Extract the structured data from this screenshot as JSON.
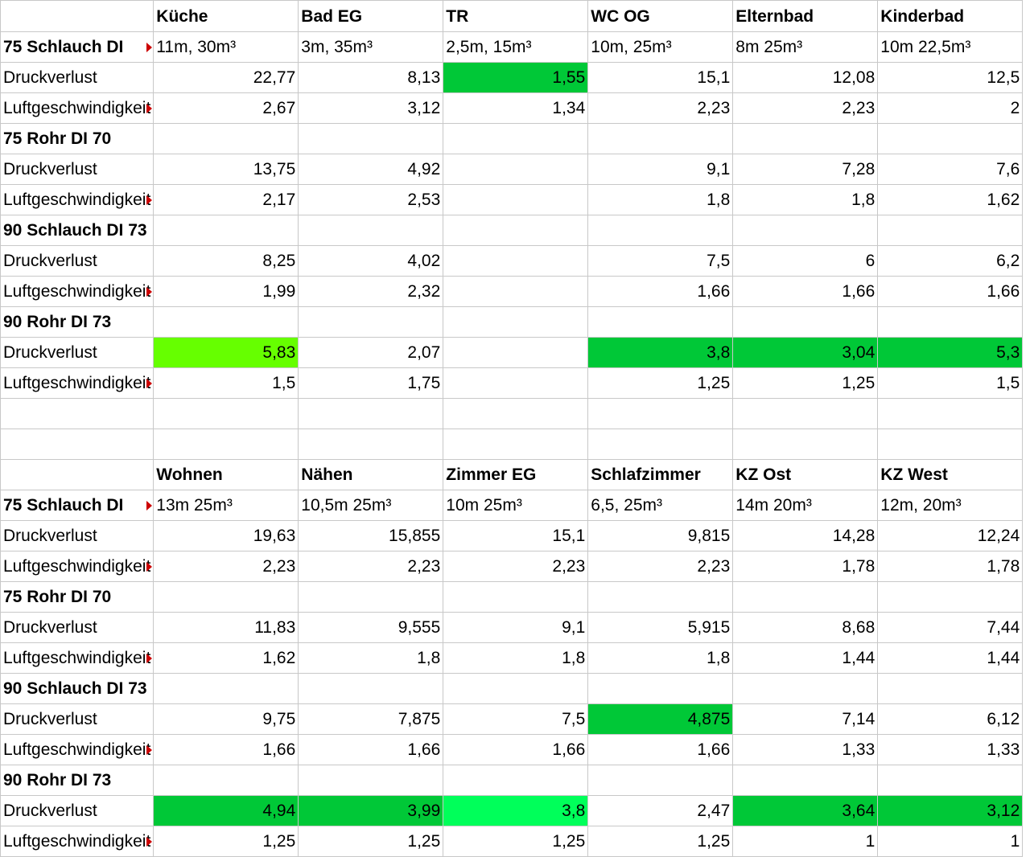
{
  "colors": {
    "green": "#00c837",
    "lime": "#66ff00",
    "light_green": "#00ff5a",
    "gridline": "#c8c8c8",
    "comment_marker": "#cc0000"
  },
  "rows": [
    {
      "cells": [
        {
          "text": ""
        },
        {
          "text": "Küche",
          "bold": true
        },
        {
          "text": "Bad EG",
          "bold": true
        },
        {
          "text": "TR",
          "bold": true
        },
        {
          "text": "WC OG",
          "bold": true
        },
        {
          "text": "Elternbad",
          "bold": true
        },
        {
          "text": "Kinderbad",
          "bold": true
        }
      ]
    },
    {
      "cells": [
        {
          "text": "75 Schlauch DI",
          "bold": true,
          "marker": true
        },
        {
          "text": "11m, 30m³"
        },
        {
          "text": "3m, 35m³"
        },
        {
          "text": "2,5m, 15m³"
        },
        {
          "text": "10m, 25m³"
        },
        {
          "text": " 8m 25m³"
        },
        {
          "text": "10m 22,5m³"
        }
      ]
    },
    {
      "cells": [
        {
          "text": "Druckverlust"
        },
        {
          "text": "22,77",
          "num": true
        },
        {
          "text": "8,13",
          "num": true
        },
        {
          "text": "1,55",
          "num": true,
          "fill": "green"
        },
        {
          "text": "15,1",
          "num": true
        },
        {
          "text": "12,08",
          "num": true
        },
        {
          "text": "12,5",
          "num": true
        }
      ]
    },
    {
      "cells": [
        {
          "text": "Luftgeschwindigkeit",
          "marker": true
        },
        {
          "text": "2,67",
          "num": true
        },
        {
          "text": "3,12",
          "num": true
        },
        {
          "text": "1,34",
          "num": true
        },
        {
          "text": "2,23",
          "num": true
        },
        {
          "text": "2,23",
          "num": true
        },
        {
          "text": "2",
          "num": true
        }
      ]
    },
    {
      "cells": [
        {
          "text": "75 Rohr DI 70",
          "bold": true
        },
        {
          "text": ""
        },
        {
          "text": ""
        },
        {
          "text": ""
        },
        {
          "text": ""
        },
        {
          "text": ""
        },
        {
          "text": ""
        }
      ]
    },
    {
      "cells": [
        {
          "text": "Druckverlust"
        },
        {
          "text": "13,75",
          "num": true
        },
        {
          "text": "4,92",
          "num": true
        },
        {
          "text": ""
        },
        {
          "text": "9,1",
          "num": true
        },
        {
          "text": "7,28",
          "num": true
        },
        {
          "text": "7,6",
          "num": true
        }
      ]
    },
    {
      "cells": [
        {
          "text": "Luftgeschwindigkeit",
          "marker": true
        },
        {
          "text": "2,17",
          "num": true
        },
        {
          "text": "2,53",
          "num": true
        },
        {
          "text": ""
        },
        {
          "text": "1,8",
          "num": true
        },
        {
          "text": "1,8",
          "num": true
        },
        {
          "text": "1,62",
          "num": true
        }
      ]
    },
    {
      "cells": [
        {
          "text": "90 Schlauch DI 73",
          "bold": true
        },
        {
          "text": ""
        },
        {
          "text": ""
        },
        {
          "text": ""
        },
        {
          "text": ""
        },
        {
          "text": ""
        },
        {
          "text": ""
        }
      ]
    },
    {
      "cells": [
        {
          "text": "Druckverlust"
        },
        {
          "text": "8,25",
          "num": true
        },
        {
          "text": "4,02",
          "num": true
        },
        {
          "text": ""
        },
        {
          "text": "7,5",
          "num": true
        },
        {
          "text": "6",
          "num": true
        },
        {
          "text": "6,2",
          "num": true
        }
      ]
    },
    {
      "cells": [
        {
          "text": "Luftgeschwindigkeit",
          "marker": true
        },
        {
          "text": "1,99",
          "num": true
        },
        {
          "text": "2,32",
          "num": true
        },
        {
          "text": ""
        },
        {
          "text": "1,66",
          "num": true
        },
        {
          "text": "1,66",
          "num": true
        },
        {
          "text": "1,66",
          "num": true
        }
      ]
    },
    {
      "cells": [
        {
          "text": "90 Rohr DI 73",
          "bold": true
        },
        {
          "text": ""
        },
        {
          "text": ""
        },
        {
          "text": ""
        },
        {
          "text": ""
        },
        {
          "text": ""
        },
        {
          "text": ""
        }
      ]
    },
    {
      "cells": [
        {
          "text": "Druckverlust"
        },
        {
          "text": "5,83",
          "num": true,
          "fill": "lime"
        },
        {
          "text": "2,07",
          "num": true
        },
        {
          "text": ""
        },
        {
          "text": "3,8",
          "num": true,
          "fill": "green"
        },
        {
          "text": "3,04",
          "num": true,
          "fill": "green"
        },
        {
          "text": "5,3",
          "num": true,
          "fill": "green"
        }
      ]
    },
    {
      "cells": [
        {
          "text": "Luftgeschwindigkeit",
          "marker": true
        },
        {
          "text": "1,5",
          "num": true
        },
        {
          "text": "1,75",
          "num": true
        },
        {
          "text": ""
        },
        {
          "text": "1,25",
          "num": true
        },
        {
          "text": "1,25",
          "num": true
        },
        {
          "text": "1,5",
          "num": true
        }
      ]
    },
    {
      "cells": [
        {
          "text": ""
        },
        {
          "text": ""
        },
        {
          "text": ""
        },
        {
          "text": ""
        },
        {
          "text": ""
        },
        {
          "text": ""
        },
        {
          "text": ""
        }
      ]
    },
    {
      "cells": [
        {
          "text": ""
        },
        {
          "text": ""
        },
        {
          "text": ""
        },
        {
          "text": ""
        },
        {
          "text": ""
        },
        {
          "text": ""
        },
        {
          "text": ""
        }
      ]
    },
    {
      "cells": [
        {
          "text": ""
        },
        {
          "text": "Wohnen",
          "bold": true
        },
        {
          "text": "Nähen",
          "bold": true
        },
        {
          "text": "Zimmer EG",
          "bold": true
        },
        {
          "text": "Schlafzimmer",
          "bold": true
        },
        {
          "text": "KZ Ost",
          "bold": true
        },
        {
          "text": "KZ West",
          "bold": true
        }
      ]
    },
    {
      "cells": [
        {
          "text": "75 Schlauch DI",
          "bold": true,
          "marker": true
        },
        {
          "text": " 13m 25m³"
        },
        {
          "text": "10,5m 25m³"
        },
        {
          "text": "10m 25m³"
        },
        {
          "text": "6,5, 25m³"
        },
        {
          "text": "14m 20m³"
        },
        {
          "text": "12m, 20m³"
        }
      ]
    },
    {
      "cells": [
        {
          "text": "Druckverlust"
        },
        {
          "text": "19,63",
          "num": true
        },
        {
          "text": "15,855",
          "num": true
        },
        {
          "text": "15,1",
          "num": true
        },
        {
          "text": "9,815",
          "num": true
        },
        {
          "text": "14,28",
          "num": true
        },
        {
          "text": "12,24",
          "num": true
        }
      ]
    },
    {
      "cells": [
        {
          "text": "Luftgeschwindigkeit",
          "marker": true
        },
        {
          "text": "2,23",
          "num": true
        },
        {
          "text": "2,23",
          "num": true
        },
        {
          "text": "2,23",
          "num": true
        },
        {
          "text": "2,23",
          "num": true
        },
        {
          "text": "1,78",
          "num": true
        },
        {
          "text": "1,78",
          "num": true
        }
      ]
    },
    {
      "cells": [
        {
          "text": "75 Rohr DI 70",
          "bold": true
        },
        {
          "text": ""
        },
        {
          "text": ""
        },
        {
          "text": ""
        },
        {
          "text": ""
        },
        {
          "text": ""
        },
        {
          "text": ""
        }
      ]
    },
    {
      "cells": [
        {
          "text": "Druckverlust"
        },
        {
          "text": "11,83",
          "num": true
        },
        {
          "text": "9,555",
          "num": true
        },
        {
          "text": "9,1",
          "num": true
        },
        {
          "text": "5,915",
          "num": true
        },
        {
          "text": "8,68",
          "num": true
        },
        {
          "text": "7,44",
          "num": true
        }
      ]
    },
    {
      "cells": [
        {
          "text": "Luftgeschwindigkeit",
          "marker": true
        },
        {
          "text": "1,62",
          "num": true
        },
        {
          "text": "1,8",
          "num": true
        },
        {
          "text": "1,8",
          "num": true
        },
        {
          "text": "1,8",
          "num": true
        },
        {
          "text": "1,44",
          "num": true
        },
        {
          "text": "1,44",
          "num": true
        }
      ]
    },
    {
      "cells": [
        {
          "text": "90 Schlauch DI 73",
          "bold": true
        },
        {
          "text": ""
        },
        {
          "text": ""
        },
        {
          "text": ""
        },
        {
          "text": ""
        },
        {
          "text": ""
        },
        {
          "text": ""
        }
      ]
    },
    {
      "cells": [
        {
          "text": "Druckverlust"
        },
        {
          "text": "9,75",
          "num": true
        },
        {
          "text": "7,875",
          "num": true
        },
        {
          "text": "7,5",
          "num": true
        },
        {
          "text": "4,875",
          "num": true,
          "fill": "green"
        },
        {
          "text": "7,14",
          "num": true
        },
        {
          "text": "6,12",
          "num": true
        }
      ]
    },
    {
      "cells": [
        {
          "text": "Luftgeschwindigkeit",
          "marker": true
        },
        {
          "text": "1,66",
          "num": true
        },
        {
          "text": "1,66",
          "num": true
        },
        {
          "text": "1,66",
          "num": true
        },
        {
          "text": "1,66",
          "num": true
        },
        {
          "text": "1,33",
          "num": true
        },
        {
          "text": "1,33",
          "num": true
        }
      ]
    },
    {
      "cells": [
        {
          "text": "90 Rohr DI 73",
          "bold": true
        },
        {
          "text": ""
        },
        {
          "text": ""
        },
        {
          "text": ""
        },
        {
          "text": ""
        },
        {
          "text": ""
        },
        {
          "text": ""
        }
      ]
    },
    {
      "cells": [
        {
          "text": "Druckverlust"
        },
        {
          "text": "4,94",
          "num": true,
          "fill": "green"
        },
        {
          "text": "3,99",
          "num": true,
          "fill": "green"
        },
        {
          "text": "3,8",
          "num": true,
          "fill": "light_green"
        },
        {
          "text": "2,47",
          "num": true
        },
        {
          "text": "3,64",
          "num": true,
          "fill": "green"
        },
        {
          "text": "3,12",
          "num": true,
          "fill": "green"
        }
      ]
    },
    {
      "cells": [
        {
          "text": "Luftgeschwindigkeit",
          "marker": true
        },
        {
          "text": "1,25",
          "num": true
        },
        {
          "text": "1,25",
          "num": true
        },
        {
          "text": "1,25",
          "num": true
        },
        {
          "text": "1,25",
          "num": true
        },
        {
          "text": "1",
          "num": true
        },
        {
          "text": "1",
          "num": true
        }
      ]
    }
  ]
}
